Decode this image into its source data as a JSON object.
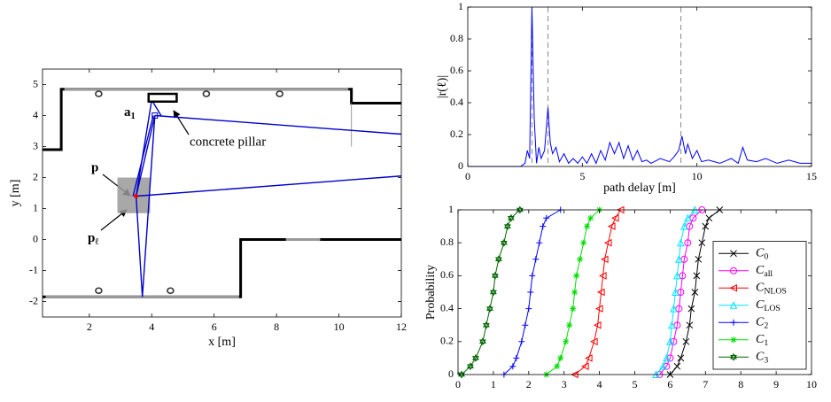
{
  "chart_data": [
    {
      "type": "floorplan",
      "xlabel": "x [m]",
      "ylabel": "y [m]",
      "xlim": [
        0.5,
        12
      ],
      "ylim": [
        -2.5,
        5.5
      ],
      "xticks": [
        2,
        4,
        6,
        8,
        10,
        12
      ],
      "yticks": [
        -2,
        -1,
        0,
        1,
        2,
        3,
        4,
        5
      ],
      "walls": {
        "color": "#000000",
        "lines": [
          {
            "x": [
              0.5,
              1.1,
              1.1,
              10.4,
              10.4,
              12
            ],
            "y": [
              2.9,
              2.9,
              4.85,
              4.85,
              4.4,
              4.4
            ]
          },
          {
            "x": [
              0.5,
              6.85,
              6.85,
              12
            ],
            "y": [
              -1.85,
              -1.85,
              0,
              0
            ]
          }
        ]
      },
      "windows": {
        "color": "#999999",
        "lines": [
          {
            "x": [
              1.2,
              10.3
            ],
            "y": [
              4.85,
              4.85
            ]
          },
          {
            "x": [
              0.6,
              6.8
            ],
            "y": [
              -1.85,
              -1.85
            ]
          },
          {
            "x": [
              8.3,
              9.4
            ],
            "y": [
              0,
              0
            ]
          },
          {
            "x": [
              10.4,
              10.4
            ],
            "y": [
              4.4,
              3.0
            ]
          }
        ]
      },
      "rays": {
        "color": "#0000cc",
        "lines": [
          {
            "x": [
              4.1,
              3.5
            ],
            "y": [
              4.0,
              1.4
            ]
          },
          {
            "x": [
              4.1,
              12
            ],
            "y": [
              4.0,
              3.4
            ]
          },
          {
            "x": [
              3.5,
              12
            ],
            "y": [
              1.4,
              2.05
            ]
          },
          {
            "x": [
              3.5,
              3.7,
              4.1
            ],
            "y": [
              1.4,
              -1.85,
              4.0
            ]
          },
          {
            "x": [
              3.5,
              4.0,
              4.3
            ],
            "y": [
              1.4,
              4.5,
              4.0
            ]
          },
          {
            "x": [
              3.4,
              4.05
            ],
            "y": [
              1.4,
              4.0
            ]
          }
        ]
      },
      "lamps": {
        "x": [
          2.3,
          5.75,
          8.1,
          2.3,
          4.6
        ],
        "y": [
          4.7,
          4.7,
          4.7,
          -1.65,
          -1.65
        ]
      },
      "pillar": {
        "x": [
          3.9,
          4.8
        ],
        "y": [
          4.45,
          4.7
        ]
      },
      "anchor": {
        "x": 4.1,
        "y": 4.0,
        "color": "#0000cc"
      },
      "region": {
        "x": [
          2.9,
          3.95
        ],
        "y": [
          0.85,
          2.0
        ],
        "color": "#999999"
      },
      "point": {
        "x": 3.5,
        "y": 1.4,
        "color": "#ee0000"
      },
      "annotations": [
        "a1",
        "concrete pillar",
        "p",
        "pℓ"
      ]
    },
    {
      "type": "line",
      "xlabel": "path delay [m]",
      "ylabel": "|r(ℓ)|",
      "xlim": [
        0,
        15
      ],
      "ylim": [
        0,
        1
      ],
      "xticks": [
        0,
        5,
        10,
        15
      ],
      "yticks": [
        0,
        0.2,
        0.4,
        0.6,
        0.8,
        1
      ],
      "x": [
        0,
        2.3,
        2.5,
        2.6,
        2.7,
        2.8,
        2.9,
        3.0,
        3.1,
        3.2,
        3.35,
        3.5,
        3.6,
        3.7,
        3.85,
        4.0,
        4.2,
        4.4,
        4.6,
        4.8,
        5.0,
        5.2,
        5.4,
        5.6,
        5.8,
        6.0,
        6.2,
        6.4,
        6.6,
        6.8,
        7.0,
        7.2,
        7.4,
        7.6,
        7.8,
        8.0,
        8.4,
        8.8,
        9.0,
        9.2,
        9.35,
        9.5,
        9.6,
        9.8,
        10.0,
        10.2,
        10.5,
        11.0,
        11.5,
        11.8,
        12.0,
        12.2,
        12.6,
        13.0,
        13.5,
        14.0,
        14.5,
        15.0
      ],
      "series": [
        {
          "color": "#0000ff",
          "values": [
            0,
            0,
            0.02,
            0.1,
            0.05,
            1.0,
            0.3,
            0.02,
            0.12,
            0.05,
            0.1,
            0.37,
            0.15,
            0.08,
            0.12,
            0.03,
            0.08,
            0.02,
            0.05,
            0.02,
            0.06,
            0.02,
            0.08,
            0.02,
            0.1,
            0.04,
            0.15,
            0.08,
            0.15,
            0.05,
            0.13,
            0.04,
            0.1,
            0.03,
            0.04,
            0.02,
            0.05,
            0.03,
            0.06,
            0.1,
            0.19,
            0.08,
            0.14,
            0.05,
            0.1,
            0.03,
            0.04,
            0.02,
            0.05,
            0.02,
            0.12,
            0.04,
            0.03,
            0.05,
            0.02,
            0.04,
            0.02,
            0.02
          ]
        }
      ],
      "vlines": {
        "x": [
          2.8,
          3.5,
          9.3
        ],
        "color": "#888888"
      }
    },
    {
      "type": "line",
      "ylabel": "Probability",
      "xlim": [
        0,
        10
      ],
      "ylim": [
        0,
        1
      ],
      "xticks": [
        0,
        1,
        2,
        3,
        4,
        5,
        6,
        7,
        8,
        9,
        10
      ],
      "yticks": [
        0,
        0.2,
        0.4,
        0.6,
        0.8,
        1
      ],
      "legend": "lower right",
      "series": [
        {
          "name": "C0",
          "color": "#000000",
          "marker": "x",
          "x": [
            6.0,
            6.2,
            6.3,
            6.45,
            6.55,
            6.6,
            6.7,
            6.75,
            6.8,
            6.9,
            7.0,
            7.1,
            7.4
          ],
          "values": [
            0,
            0.05,
            0.1,
            0.2,
            0.3,
            0.4,
            0.5,
            0.6,
            0.7,
            0.8,
            0.9,
            0.95,
            1
          ]
        },
        {
          "name": "Call",
          "color": "#ff00ff",
          "marker": "o",
          "x": [
            5.7,
            5.9,
            6.0,
            6.1,
            6.2,
            6.25,
            6.3,
            6.35,
            6.4,
            6.5,
            6.55,
            6.65,
            6.9
          ],
          "values": [
            0,
            0.05,
            0.1,
            0.2,
            0.3,
            0.4,
            0.5,
            0.6,
            0.7,
            0.8,
            0.9,
            0.95,
            1
          ]
        },
        {
          "name": "CNLOS",
          "color": "#ff0000",
          "marker": "<",
          "x": [
            3.3,
            3.6,
            3.7,
            3.85,
            3.95,
            4.0,
            4.05,
            4.1,
            4.15,
            4.25,
            4.35,
            4.45,
            4.6
          ],
          "values": [
            0,
            0.05,
            0.1,
            0.2,
            0.3,
            0.4,
            0.5,
            0.6,
            0.7,
            0.8,
            0.9,
            0.95,
            1
          ]
        },
        {
          "name": "CLOS",
          "color": "#00e5ff",
          "marker": "^",
          "x": [
            5.6,
            5.8,
            5.9,
            6.0,
            6.05,
            6.1,
            6.15,
            6.2,
            6.25,
            6.3,
            6.4,
            6.5,
            6.7
          ],
          "values": [
            0,
            0.05,
            0.1,
            0.2,
            0.3,
            0.4,
            0.5,
            0.6,
            0.7,
            0.8,
            0.9,
            0.95,
            1
          ]
        },
        {
          "name": "C2",
          "color": "#0000ff",
          "marker": "+",
          "x": [
            1.3,
            1.55,
            1.65,
            1.8,
            1.9,
            2.0,
            2.05,
            2.1,
            2.2,
            2.3,
            2.4,
            2.5,
            2.9
          ],
          "values": [
            0,
            0.05,
            0.1,
            0.2,
            0.3,
            0.4,
            0.5,
            0.6,
            0.7,
            0.8,
            0.9,
            0.95,
            1
          ]
        },
        {
          "name": "C1",
          "color": "#00dd00",
          "marker": "*",
          "x": [
            2.5,
            2.8,
            2.9,
            3.05,
            3.15,
            3.25,
            3.3,
            3.35,
            3.45,
            3.55,
            3.65,
            3.75,
            4.0
          ],
          "values": [
            0,
            0.05,
            0.1,
            0.2,
            0.3,
            0.4,
            0.5,
            0.6,
            0.7,
            0.8,
            0.9,
            0.95,
            1
          ]
        },
        {
          "name": "C3",
          "color": "#006600",
          "marker": "hexagram",
          "x": [
            0.1,
            0.35,
            0.5,
            0.7,
            0.8,
            0.9,
            1.0,
            1.05,
            1.15,
            1.3,
            1.4,
            1.5,
            1.75
          ],
          "values": [
            0,
            0.05,
            0.1,
            0.2,
            0.3,
            0.4,
            0.5,
            0.6,
            0.7,
            0.8,
            0.9,
            0.95,
            1
          ]
        }
      ]
    }
  ]
}
